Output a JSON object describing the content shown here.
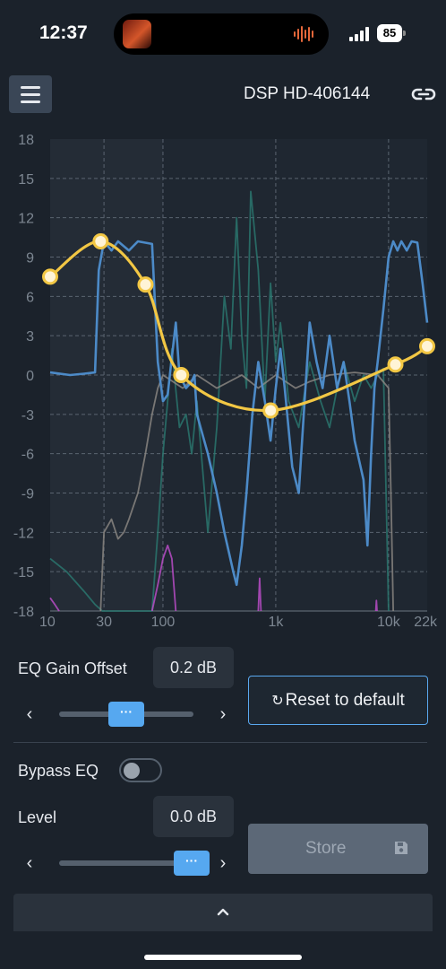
{
  "status_bar": {
    "time": "12:37",
    "battery": "85"
  },
  "header": {
    "device_name": "DSP HD-406144"
  },
  "chart_data": {
    "type": "line",
    "x_scale": "log",
    "xlim": [
      10,
      22000
    ],
    "ylim": [
      -18,
      18
    ],
    "x_ticks": [
      {
        "value": 10,
        "label": "10"
      },
      {
        "value": 30,
        "label": "30"
      },
      {
        "value": 100,
        "label": "100"
      },
      {
        "value": 1000,
        "label": "1k"
      },
      {
        "value": 10000,
        "label": "10k"
      },
      {
        "value": 22000,
        "label": "22k"
      }
    ],
    "y_ticks": [
      "18",
      "15",
      "12",
      "9",
      "6",
      "3",
      "0",
      "-3",
      "-6",
      "-9",
      "-12",
      "-15",
      "-18"
    ],
    "y_tick_values": [
      18,
      15,
      12,
      9,
      6,
      3,
      0,
      -3,
      -6,
      -9,
      -12,
      -15,
      -18
    ],
    "grid": true,
    "colors": {
      "eq": "#f2c744",
      "blue": "#4f8fd0",
      "teal": "#2b7a72",
      "gray": "#8f8b86",
      "magenta": "#c24fd0"
    },
    "eq_points": [
      {
        "x": 10,
        "y": 7.5
      },
      {
        "x": 28,
        "y": 10.2
      },
      {
        "x": 70,
        "y": 6.9
      },
      {
        "x": 145,
        "y": 0
      },
      {
        "x": 900,
        "y": -2.7
      },
      {
        "x": 11500,
        "y": 0.8
      },
      {
        "x": 22000,
        "y": 2.2
      }
    ],
    "series": [
      {
        "color": "#4f8fd0",
        "points": [
          [
            10,
            0.2
          ],
          [
            15,
            0
          ],
          [
            20,
            0.1
          ],
          [
            25,
            0.2
          ],
          [
            27,
            8
          ],
          [
            30,
            10.2
          ],
          [
            35,
            9.5
          ],
          [
            40,
            10.2
          ],
          [
            50,
            9.5
          ],
          [
            60,
            10.2
          ],
          [
            80,
            10
          ],
          [
            90,
            1
          ],
          [
            100,
            -2
          ],
          [
            110,
            -1.5
          ],
          [
            130,
            4
          ],
          [
            140,
            0
          ],
          [
            160,
            -1
          ],
          [
            180,
            -0.5
          ],
          [
            190,
            0
          ],
          [
            200,
            -3
          ],
          [
            250,
            -6
          ],
          [
            300,
            -9
          ],
          [
            350,
            -12
          ],
          [
            420,
            -15
          ],
          [
            450,
            -16
          ],
          [
            500,
            -13
          ],
          [
            550,
            -9
          ],
          [
            620,
            -3
          ],
          [
            700,
            1
          ],
          [
            800,
            -2
          ],
          [
            900,
            -5
          ],
          [
            1000,
            -1
          ],
          [
            1100,
            2
          ],
          [
            1200,
            -1
          ],
          [
            1400,
            -7
          ],
          [
            1600,
            -9
          ],
          [
            1800,
            -2
          ],
          [
            2000,
            4
          ],
          [
            2300,
            1
          ],
          [
            2600,
            -1
          ],
          [
            3000,
            3
          ],
          [
            3500,
            -1
          ],
          [
            4000,
            1
          ],
          [
            4500,
            -2
          ],
          [
            5000,
            -5
          ],
          [
            6000,
            -8
          ],
          [
            6500,
            -13
          ],
          [
            7000,
            -6
          ],
          [
            7500,
            -1
          ],
          [
            8000,
            1
          ],
          [
            9000,
            5
          ],
          [
            10000,
            9
          ],
          [
            11000,
            10.2
          ],
          [
            12000,
            9.5
          ],
          [
            13000,
            10.2
          ],
          [
            14500,
            9.5
          ],
          [
            16000,
            10.2
          ],
          [
            18000,
            10.1
          ],
          [
            20000,
            7
          ],
          [
            22000,
            4
          ]
        ]
      },
      {
        "color": "#2b7a72",
        "points": [
          [
            10,
            -14
          ],
          [
            14,
            -15
          ],
          [
            20,
            -16.5
          ],
          [
            25,
            -17.5
          ],
          [
            29,
            -18
          ],
          [
            80,
            -18
          ],
          [
            90,
            -12
          ],
          [
            100,
            -6
          ],
          [
            110,
            -2
          ],
          [
            120,
            2
          ],
          [
            140,
            -4
          ],
          [
            160,
            -3
          ],
          [
            180,
            -6
          ],
          [
            200,
            -2
          ],
          [
            250,
            -12
          ],
          [
            300,
            -4
          ],
          [
            350,
            6
          ],
          [
            400,
            2
          ],
          [
            450,
            12
          ],
          [
            500,
            3
          ],
          [
            550,
            -1
          ],
          [
            600,
            14
          ],
          [
            700,
            8
          ],
          [
            800,
            -2
          ],
          [
            900,
            7
          ],
          [
            1000,
            1
          ],
          [
            1100,
            4
          ],
          [
            1200,
            1
          ],
          [
            1300,
            -2
          ],
          [
            1600,
            -4
          ],
          [
            2000,
            1
          ],
          [
            2500,
            -2
          ],
          [
            3000,
            -4
          ],
          [
            3500,
            -1
          ],
          [
            4000,
            1
          ],
          [
            5000,
            -2
          ],
          [
            6000,
            0
          ],
          [
            7000,
            -1
          ],
          [
            8000,
            0
          ],
          [
            9000,
            0.5
          ],
          [
            10000,
            -18
          ]
        ]
      },
      {
        "color": "#8f8b86",
        "points": [
          [
            28,
            -18
          ],
          [
            30,
            -12
          ],
          [
            35,
            -11
          ],
          [
            40,
            -12.5
          ],
          [
            45,
            -12
          ],
          [
            50,
            -11
          ],
          [
            60,
            -9
          ],
          [
            70,
            -6
          ],
          [
            80,
            -3
          ],
          [
            90,
            -1
          ],
          [
            100,
            0
          ],
          [
            150,
            -1
          ],
          [
            200,
            0
          ],
          [
            300,
            -1
          ],
          [
            500,
            0
          ],
          [
            700,
            -1
          ],
          [
            1000,
            0
          ],
          [
            1500,
            -1
          ],
          [
            2000,
            -0.5
          ],
          [
            3000,
            0
          ],
          [
            5000,
            0.2
          ],
          [
            8000,
            0
          ],
          [
            10000,
            -1
          ],
          [
            10500,
            -9
          ],
          [
            11000,
            -18
          ]
        ]
      },
      {
        "color": "#c24fd0",
        "points": [
          [
            10,
            -17
          ],
          [
            11,
            -17.5
          ],
          [
            12,
            -18
          ]
        ]
      },
      {
        "color": "#c24fd0",
        "points": [
          [
            80,
            -18
          ],
          [
            90,
            -16
          ],
          [
            100,
            -14
          ],
          [
            110,
            -13
          ],
          [
            120,
            -14
          ],
          [
            130,
            -18
          ]
        ]
      },
      {
        "color": "#c24fd0",
        "points": [
          [
            700,
            -18
          ],
          [
            720,
            -15.5
          ],
          [
            740,
            -18
          ]
        ]
      },
      {
        "color": "#c24fd0",
        "points": [
          [
            7700,
            -18
          ],
          [
            7800,
            -17.2
          ],
          [
            7900,
            -18
          ]
        ]
      }
    ]
  },
  "eq_gain_offset": {
    "label": "EQ Gain Offset",
    "value": "0.2 dB",
    "left_arrow": "‹",
    "right_arrow": "›",
    "thumb": "···",
    "fill": 0.5
  },
  "reset_button": {
    "icon": "↻",
    "label": "Reset to default"
  },
  "bypass": {
    "label": "Bypass EQ",
    "enabled": false
  },
  "level": {
    "label": "Level",
    "value": "0.0 dB",
    "left_arrow": "‹",
    "right_arrow": "›",
    "thumb": "···",
    "fill": 1.0
  },
  "store_button": {
    "label": "Store",
    "icon": "save-icon"
  }
}
